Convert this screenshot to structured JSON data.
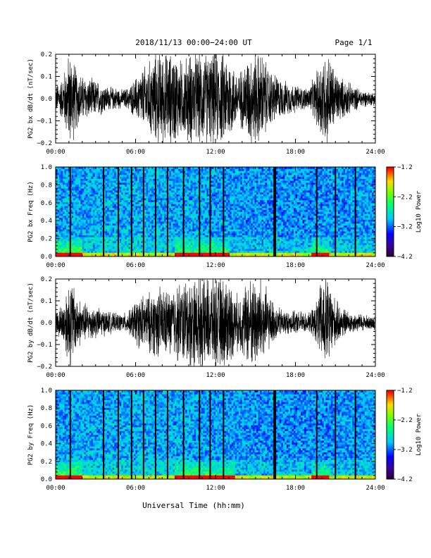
{
  "header": {
    "title": "2018/11/13  00:00−24:00 UT",
    "page_label": "Page 1/1"
  },
  "xlabel": "Universal Time (hh:mm)",
  "chart_data": [
    {
      "type": "line",
      "title": "",
      "ylabel": "PG2 bx dB/dt (nT/sec)",
      "xlabel": "",
      "xlim": [
        0,
        24
      ],
      "ylim": [
        -0.2,
        0.2
      ],
      "x_ticks": [
        "00:00",
        "06:00",
        "12:00",
        "18:00",
        "24:00"
      ],
      "y_ticks": [
        "−0.2",
        "−0.1",
        "0.0",
        "0.1",
        "0.2"
      ],
      "series": [
        {
          "x_hours": [
            0,
            0.5,
            1.0,
            1.25,
            1.5,
            2,
            2.5,
            3,
            3.5,
            4,
            4.5,
            5,
            5.5,
            6,
            6.5,
            7,
            7.5,
            8,
            8.5,
            9,
            9.5,
            10,
            10.5,
            11,
            11.5,
            12,
            12.5,
            13,
            13.5,
            14,
            14.5,
            15,
            15.5,
            16,
            16.5,
            17,
            17.5,
            18,
            18.5,
            19,
            19.5,
            20,
            20.5,
            21,
            21.5,
            22,
            22.5,
            23,
            23.5,
            24
          ],
          "amplitude": [
            0.06,
            0.09,
            0.2,
            0.2,
            0.14,
            0.1,
            0.09,
            0.08,
            0.07,
            0.05,
            0.05,
            0.04,
            0.05,
            0.09,
            0.13,
            0.16,
            0.2,
            0.2,
            0.2,
            0.2,
            0.16,
            0.2,
            0.2,
            0.2,
            0.2,
            0.2,
            0.2,
            0.2,
            0.12,
            0.13,
            0.2,
            0.2,
            0.2,
            0.13,
            0.11,
            0.08,
            0.07,
            0.06,
            0.05,
            0.05,
            0.1,
            0.2,
            0.2,
            0.12,
            0.09,
            0.07,
            0.05,
            0.04,
            0.03,
            0.03
          ]
        }
      ]
    },
    {
      "type": "heatmap",
      "title": "",
      "ylabel": "PG2 bx Freq (Hz)",
      "xlim": [
        0,
        24
      ],
      "ylim": [
        0.0,
        1.0
      ],
      "x_ticks": [
        "00:00",
        "06:00",
        "12:00",
        "18:00",
        "24:00"
      ],
      "y_ticks": [
        "0.0",
        "0.2",
        "0.4",
        "0.6",
        "0.8",
        "1.0"
      ],
      "colorbar": {
        "label": "Log10 Power",
        "range": [
          -4.2,
          -1.2
        ],
        "ticks": [
          "−1.2",
          "−2.2",
          "−3.2",
          "−4.2"
        ]
      },
      "data_gaps_hours": [
        1.1,
        3.6,
        4.7,
        5.7,
        6.6,
        7.5,
        8.4,
        9.6,
        10.8,
        11.6,
        12.6,
        16.4,
        16.5,
        19.6,
        21.0,
        22.5
      ],
      "low_freq_enhancement": [
        {
          "hours": [
            0,
            2
          ],
          "level": 0.85
        },
        {
          "hours": [
            9,
            13
          ],
          "level": 0.6
        },
        {
          "hours": [
            19.2,
            20.5
          ],
          "level": 0.7
        }
      ]
    },
    {
      "type": "line",
      "title": "",
      "ylabel": "PG2 by dB/dt (nT/sec)",
      "xlabel": "",
      "xlim": [
        0,
        24
      ],
      "ylim": [
        -0.2,
        0.2
      ],
      "x_ticks": [
        "00:00",
        "06:00",
        "12:00",
        "18:00",
        "24:00"
      ],
      "y_ticks": [
        "−0.2",
        "−0.1",
        "0.0",
        "0.1",
        "0.2"
      ],
      "series": [
        {
          "x_hours": [
            0,
            0.5,
            1.0,
            1.25,
            1.5,
            2,
            2.5,
            3,
            3.5,
            4,
            4.5,
            5,
            5.5,
            6,
            6.5,
            7,
            7.5,
            8,
            8.5,
            9,
            9.5,
            10,
            10.5,
            11,
            11.5,
            12,
            12.5,
            13,
            13.5,
            14,
            14.5,
            15,
            15.5,
            16,
            16.5,
            17,
            17.5,
            18,
            18.5,
            19,
            19.5,
            20,
            20.5,
            21,
            21.5,
            22,
            22.5,
            23,
            23.5,
            24
          ],
          "amplitude": [
            0.06,
            0.08,
            0.2,
            0.2,
            0.13,
            0.09,
            0.08,
            0.07,
            0.06,
            0.05,
            0.04,
            0.04,
            0.05,
            0.1,
            0.12,
            0.13,
            0.15,
            0.16,
            0.14,
            0.17,
            0.18,
            0.2,
            0.2,
            0.2,
            0.2,
            0.2,
            0.2,
            0.2,
            0.12,
            0.14,
            0.2,
            0.2,
            0.2,
            0.12,
            0.08,
            0.06,
            0.05,
            0.05,
            0.05,
            0.04,
            0.08,
            0.2,
            0.2,
            0.1,
            0.07,
            0.05,
            0.04,
            0.04,
            0.03,
            0.03
          ]
        }
      ]
    },
    {
      "type": "heatmap",
      "title": "",
      "ylabel": "PG2 by Freq (Hz)",
      "xlim": [
        0,
        24
      ],
      "ylim": [
        0.0,
        1.0
      ],
      "x_ticks": [
        "00:00",
        "06:00",
        "12:00",
        "18:00",
        "24:00"
      ],
      "y_ticks": [
        "0.0",
        "0.2",
        "0.4",
        "0.6",
        "0.8",
        "1.0"
      ],
      "colorbar": {
        "label": "Log10 Power",
        "range": [
          -4.2,
          -1.2
        ],
        "ticks": [
          "−1.2",
          "−2.2",
          "−3.2",
          "−4.2"
        ]
      },
      "data_gaps_hours": [
        1.1,
        3.6,
        4.7,
        5.7,
        6.6,
        7.5,
        8.4,
        9.6,
        10.8,
        11.6,
        12.6,
        16.4,
        16.5,
        19.6,
        21.0,
        22.5
      ],
      "low_freq_enhancement": [
        {
          "hours": [
            0,
            2
          ],
          "level": 0.8
        },
        {
          "hours": [
            9,
            13.5
          ],
          "level": 0.65
        },
        {
          "hours": [
            19.2,
            20.5
          ],
          "level": 0.6
        }
      ]
    }
  ]
}
